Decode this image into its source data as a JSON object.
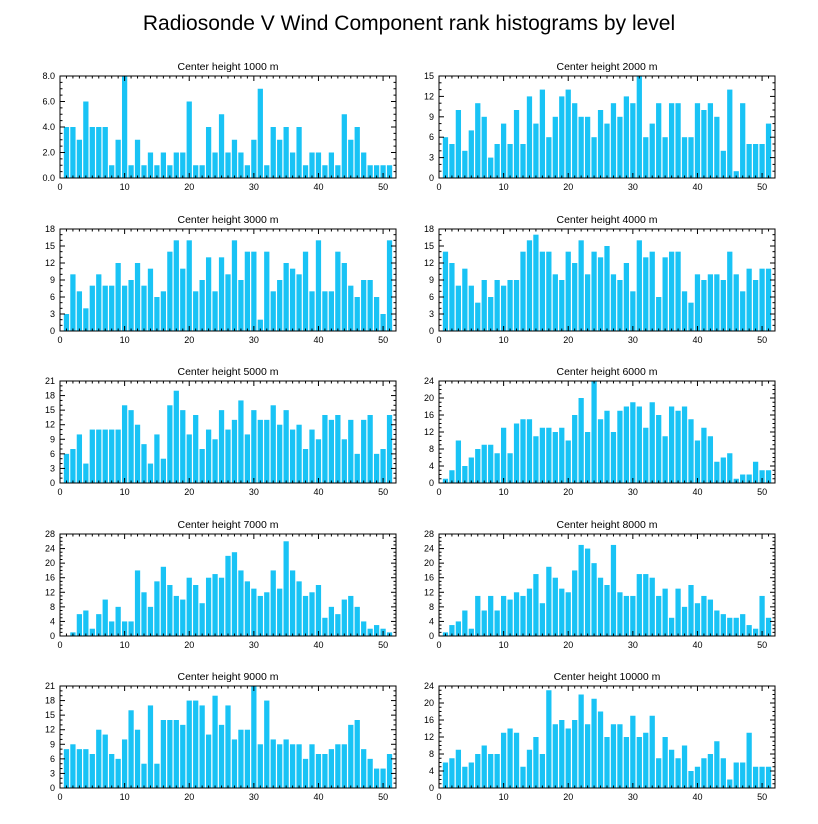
{
  "figure_title": "Radiosonde V Wind Component rank histograms by level",
  "colors": {
    "bar": "#19c3f5",
    "frame": "#000000",
    "background": "#ffffff"
  },
  "chart_data": [
    {
      "type": "bar",
      "title": "Center height 1000 m",
      "xlim": [
        0,
        52
      ],
      "ylim": [
        0,
        8
      ],
      "xticks": [
        0,
        10,
        20,
        30,
        40,
        50
      ],
      "xtick_labels": [
        "0",
        "10",
        "20",
        "30",
        "40",
        "50"
      ],
      "yticks": [
        0,
        2,
        4,
        6,
        8
      ],
      "ytick_labels": [
        "0.0",
        "2.0",
        "4.0",
        "6.0",
        "8.0"
      ],
      "x": [
        1,
        2,
        3,
        4,
        5,
        6,
        7,
        8,
        9,
        10,
        11,
        12,
        13,
        14,
        15,
        16,
        17,
        18,
        19,
        20,
        21,
        22,
        23,
        24,
        25,
        26,
        27,
        28,
        29,
        30,
        31,
        32,
        33,
        34,
        35,
        36,
        37,
        38,
        39,
        40,
        41,
        42,
        43,
        44,
        45,
        46,
        47,
        48,
        49,
        50,
        51
      ],
      "values": [
        4,
        4,
        3,
        6,
        4,
        4,
        4,
        1,
        3,
        8,
        1,
        3,
        1,
        2,
        1,
        2,
        1,
        2,
        2,
        6,
        1,
        1,
        4,
        2,
        5,
        2,
        3,
        2,
        1,
        3,
        7,
        1,
        4,
        3,
        4,
        2,
        4,
        1,
        2,
        2,
        1,
        2,
        1,
        5,
        3,
        4,
        2,
        1,
        1,
        1,
        1
      ]
    },
    {
      "type": "bar",
      "title": "Center height 2000 m",
      "xlim": [
        0,
        52
      ],
      "ylim": [
        0,
        15
      ],
      "xticks": [
        0,
        10,
        20,
        30,
        40,
        50
      ],
      "xtick_labels": [
        "0",
        "10",
        "20",
        "30",
        "40",
        "50"
      ],
      "yticks": [
        0,
        3,
        6,
        9,
        12,
        15
      ],
      "ytick_labels": [
        "0",
        "3",
        "6",
        "9",
        "12",
        "15"
      ],
      "x": [
        1,
        2,
        3,
        4,
        5,
        6,
        7,
        8,
        9,
        10,
        11,
        12,
        13,
        14,
        15,
        16,
        17,
        18,
        19,
        20,
        21,
        22,
        23,
        24,
        25,
        26,
        27,
        28,
        29,
        30,
        31,
        32,
        33,
        34,
        35,
        36,
        37,
        38,
        39,
        40,
        41,
        42,
        43,
        44,
        45,
        46,
        47,
        48,
        49,
        50,
        51
      ],
      "values": [
        6,
        5,
        10,
        4,
        7,
        11,
        9,
        3,
        5,
        8,
        5,
        10,
        5,
        12,
        8,
        13,
        6,
        9,
        12,
        13,
        11,
        9,
        9,
        6,
        10,
        8,
        11,
        9,
        12,
        11,
        15,
        6,
        8,
        11,
        6,
        11,
        11,
        6,
        6,
        11,
        10,
        11,
        9,
        4,
        13,
        1,
        11,
        5,
        5,
        5,
        8
      ]
    },
    {
      "type": "bar",
      "title": "Center height 3000 m",
      "xlim": [
        0,
        52
      ],
      "ylim": [
        0,
        18
      ],
      "xticks": [
        0,
        10,
        20,
        30,
        40,
        50
      ],
      "xtick_labels": [
        "0",
        "10",
        "20",
        "30",
        "40",
        "50"
      ],
      "yticks": [
        0,
        3,
        6,
        9,
        12,
        15,
        18
      ],
      "ytick_labels": [
        "0",
        "3",
        "6",
        "9",
        "12",
        "15",
        "18"
      ],
      "x": [
        1,
        2,
        3,
        4,
        5,
        6,
        7,
        8,
        9,
        10,
        11,
        12,
        13,
        14,
        15,
        16,
        17,
        18,
        19,
        20,
        21,
        22,
        23,
        24,
        25,
        26,
        27,
        28,
        29,
        30,
        31,
        32,
        33,
        34,
        35,
        36,
        37,
        38,
        39,
        40,
        41,
        42,
        43,
        44,
        45,
        46,
        47,
        48,
        49,
        50,
        51
      ],
      "values": [
        3,
        10,
        7,
        4,
        8,
        10,
        8,
        8,
        12,
        8,
        9,
        12,
        8,
        11,
        6,
        7,
        14,
        16,
        11,
        16,
        7,
        9,
        13,
        7,
        13,
        10,
        16,
        9,
        14,
        14,
        2,
        14,
        7,
        9,
        12,
        11,
        10,
        14,
        7,
        16,
        7,
        7,
        14,
        12,
        8,
        6,
        9,
        9,
        6,
        3,
        16
      ]
    },
    {
      "type": "bar",
      "title": "Center height 4000 m",
      "xlim": [
        0,
        52
      ],
      "ylim": [
        0,
        18
      ],
      "xticks": [
        0,
        10,
        20,
        30,
        40,
        50
      ],
      "xtick_labels": [
        "0",
        "10",
        "20",
        "30",
        "40",
        "50"
      ],
      "yticks": [
        0,
        3,
        6,
        9,
        12,
        15,
        18
      ],
      "ytick_labels": [
        "0",
        "3",
        "6",
        "9",
        "12",
        "15",
        "18"
      ],
      "x": [
        1,
        2,
        3,
        4,
        5,
        6,
        7,
        8,
        9,
        10,
        11,
        12,
        13,
        14,
        15,
        16,
        17,
        18,
        19,
        20,
        21,
        22,
        23,
        24,
        25,
        26,
        27,
        28,
        29,
        30,
        31,
        32,
        33,
        34,
        35,
        36,
        37,
        38,
        39,
        40,
        41,
        42,
        43,
        44,
        45,
        46,
        47,
        48,
        49,
        50,
        51
      ],
      "values": [
        14,
        12,
        8,
        11,
        8,
        5,
        9,
        6,
        9,
        8,
        9,
        9,
        14,
        16,
        17,
        14,
        14,
        10,
        9,
        14,
        12,
        16,
        10,
        14,
        13,
        15,
        10,
        9,
        12,
        7,
        16,
        13,
        14,
        6,
        13,
        14,
        14,
        7,
        5,
        10,
        9,
        10,
        10,
        9,
        14,
        10,
        7,
        11,
        9,
        11,
        11
      ]
    },
    {
      "type": "bar",
      "title": "Center height 5000 m",
      "xlim": [
        0,
        52
      ],
      "ylim": [
        0,
        21
      ],
      "xticks": [
        0,
        10,
        20,
        30,
        40,
        50
      ],
      "xtick_labels": [
        "0",
        "10",
        "20",
        "30",
        "40",
        "50"
      ],
      "yticks": [
        0,
        3,
        6,
        9,
        12,
        15,
        18,
        21
      ],
      "ytick_labels": [
        "0",
        "3",
        "6",
        "9",
        "12",
        "15",
        "18",
        "21"
      ],
      "x": [
        1,
        2,
        3,
        4,
        5,
        6,
        7,
        8,
        9,
        10,
        11,
        12,
        13,
        14,
        15,
        16,
        17,
        18,
        19,
        20,
        21,
        22,
        23,
        24,
        25,
        26,
        27,
        28,
        29,
        30,
        31,
        32,
        33,
        34,
        35,
        36,
        37,
        38,
        39,
        40,
        41,
        42,
        43,
        44,
        45,
        46,
        47,
        48,
        49,
        50,
        51
      ],
      "values": [
        6,
        7,
        10,
        4,
        11,
        11,
        11,
        11,
        11,
        16,
        15,
        12,
        8,
        4,
        10,
        5,
        16,
        19,
        15,
        10,
        14,
        7,
        11,
        9,
        15,
        11,
        13,
        17,
        10,
        15,
        13,
        13,
        16,
        12,
        15,
        11,
        12,
        7,
        11,
        9,
        14,
        13,
        14,
        9,
        13,
        6,
        13,
        14,
        6,
        7,
        14
      ]
    },
    {
      "type": "bar",
      "title": "Center height 6000 m",
      "xlim": [
        0,
        52
      ],
      "ylim": [
        0,
        24
      ],
      "xticks": [
        0,
        10,
        20,
        30,
        40,
        50
      ],
      "xtick_labels": [
        "0",
        "10",
        "20",
        "30",
        "40",
        "50"
      ],
      "yticks": [
        0,
        4,
        8,
        12,
        16,
        20,
        24
      ],
      "ytick_labels": [
        "0",
        "4",
        "8",
        "12",
        "16",
        "20",
        "24"
      ],
      "x": [
        1,
        2,
        3,
        4,
        5,
        6,
        7,
        8,
        9,
        10,
        11,
        12,
        13,
        14,
        15,
        16,
        17,
        18,
        19,
        20,
        21,
        22,
        23,
        24,
        25,
        26,
        27,
        28,
        29,
        30,
        31,
        32,
        33,
        34,
        35,
        36,
        37,
        38,
        39,
        40,
        41,
        42,
        43,
        44,
        45,
        46,
        47,
        48,
        49,
        50,
        51
      ],
      "values": [
        1,
        3,
        10,
        4,
        6,
        8,
        9,
        9,
        7,
        13,
        7,
        14,
        15,
        15,
        11,
        13,
        13,
        12,
        13,
        10,
        16,
        20,
        12,
        24,
        15,
        17,
        12,
        17,
        18,
        19,
        18,
        13,
        19,
        16,
        11,
        18,
        17,
        18,
        15,
        10,
        13,
        11,
        5,
        6,
        7,
        1,
        2,
        2,
        5,
        3,
        3
      ]
    },
    {
      "type": "bar",
      "title": "Center height 7000 m",
      "xlim": [
        0,
        52
      ],
      "ylim": [
        0,
        28
      ],
      "xticks": [
        0,
        10,
        20,
        30,
        40,
        50
      ],
      "xtick_labels": [
        "0",
        "10",
        "20",
        "30",
        "40",
        "50"
      ],
      "yticks": [
        0,
        4,
        8,
        12,
        16,
        20,
        24,
        28
      ],
      "ytick_labels": [
        "0",
        "4",
        "8",
        "12",
        "16",
        "20",
        "24",
        "28"
      ],
      "x": [
        1,
        2,
        3,
        4,
        5,
        6,
        7,
        8,
        9,
        10,
        11,
        12,
        13,
        14,
        15,
        16,
        17,
        18,
        19,
        20,
        21,
        22,
        23,
        24,
        25,
        26,
        27,
        28,
        29,
        30,
        31,
        32,
        33,
        34,
        35,
        36,
        37,
        38,
        39,
        40,
        41,
        42,
        43,
        44,
        45,
        46,
        47,
        48,
        49,
        50,
        51
      ],
      "values": [
        0,
        1,
        6,
        7,
        2,
        6,
        10,
        4,
        8,
        4,
        4,
        18,
        12,
        8,
        15,
        19,
        14,
        11,
        10,
        16,
        14,
        9,
        16,
        17,
        16,
        22,
        23,
        18,
        15,
        13,
        11,
        12,
        18,
        13,
        26,
        18,
        15,
        11,
        12,
        14,
        5,
        8,
        6,
        10,
        11,
        8,
        4,
        2,
        3,
        2,
        1
      ]
    },
    {
      "type": "bar",
      "title": "Center height 8000 m",
      "xlim": [
        0,
        52
      ],
      "ylim": [
        0,
        28
      ],
      "xticks": [
        0,
        10,
        20,
        30,
        40,
        50
      ],
      "xtick_labels": [
        "0",
        "10",
        "20",
        "30",
        "40",
        "50"
      ],
      "yticks": [
        0,
        4,
        8,
        12,
        16,
        20,
        24,
        28
      ],
      "ytick_labels": [
        "0",
        "4",
        "8",
        "12",
        "16",
        "20",
        "24",
        "28"
      ],
      "x": [
        1,
        2,
        3,
        4,
        5,
        6,
        7,
        8,
        9,
        10,
        11,
        12,
        13,
        14,
        15,
        16,
        17,
        18,
        19,
        20,
        21,
        22,
        23,
        24,
        25,
        26,
        27,
        28,
        29,
        30,
        31,
        32,
        33,
        34,
        35,
        36,
        37,
        38,
        39,
        40,
        41,
        42,
        43,
        44,
        45,
        46,
        47,
        48,
        49,
        50,
        51
      ],
      "values": [
        1,
        3,
        4,
        7,
        2,
        11,
        7,
        11,
        7,
        11,
        10,
        12,
        11,
        13,
        17,
        9,
        19,
        16,
        13,
        12,
        18,
        25,
        24,
        20,
        16,
        14,
        25,
        12,
        11,
        11,
        17,
        17,
        16,
        11,
        13,
        5,
        13,
        8,
        14,
        9,
        11,
        10,
        7,
        6,
        5,
        5,
        6,
        3,
        2,
        11,
        5
      ]
    },
    {
      "type": "bar",
      "title": "Center height 9000 m",
      "xlim": [
        0,
        52
      ],
      "ylim": [
        0,
        21
      ],
      "xticks": [
        0,
        10,
        20,
        30,
        40,
        50
      ],
      "xtick_labels": [
        "0",
        "10",
        "20",
        "30",
        "40",
        "50"
      ],
      "yticks": [
        0,
        3,
        6,
        9,
        12,
        15,
        18,
        21
      ],
      "ytick_labels": [
        "0",
        "3",
        "6",
        "9",
        "12",
        "15",
        "18",
        "21"
      ],
      "x": [
        1,
        2,
        3,
        4,
        5,
        6,
        7,
        8,
        9,
        10,
        11,
        12,
        13,
        14,
        15,
        16,
        17,
        18,
        19,
        20,
        21,
        22,
        23,
        24,
        25,
        26,
        27,
        28,
        29,
        30,
        31,
        32,
        33,
        34,
        35,
        36,
        37,
        38,
        39,
        40,
        41,
        42,
        43,
        44,
        45,
        46,
        47,
        48,
        49,
        50,
        51
      ],
      "values": [
        8,
        9,
        8,
        8,
        7,
        12,
        11,
        7,
        6,
        10,
        16,
        12,
        5,
        17,
        5,
        14,
        14,
        14,
        13,
        18,
        18,
        17,
        11,
        19,
        13,
        17,
        10,
        12,
        12,
        21,
        9,
        18,
        10,
        9,
        10,
        9,
        9,
        6,
        9,
        7,
        7,
        8,
        9,
        9,
        13,
        14,
        8,
        6,
        4,
        4,
        7
      ]
    },
    {
      "type": "bar",
      "title": "Center height 10000 m",
      "xlim": [
        0,
        52
      ],
      "ylim": [
        0,
        24
      ],
      "xticks": [
        0,
        10,
        20,
        30,
        40,
        50
      ],
      "xtick_labels": [
        "0",
        "10",
        "20",
        "30",
        "40",
        "50"
      ],
      "yticks": [
        0,
        4,
        8,
        12,
        16,
        20,
        24
      ],
      "ytick_labels": [
        "0",
        "4",
        "8",
        "12",
        "16",
        "20",
        "24"
      ],
      "x": [
        1,
        2,
        3,
        4,
        5,
        6,
        7,
        8,
        9,
        10,
        11,
        12,
        13,
        14,
        15,
        16,
        17,
        18,
        19,
        20,
        21,
        22,
        23,
        24,
        25,
        26,
        27,
        28,
        29,
        30,
        31,
        32,
        33,
        34,
        35,
        36,
        37,
        38,
        39,
        40,
        41,
        42,
        43,
        44,
        45,
        46,
        47,
        48,
        49,
        50,
        51
      ],
      "values": [
        6,
        7,
        9,
        5,
        6,
        8,
        10,
        8,
        8,
        13,
        14,
        13,
        5,
        9,
        12,
        8,
        23,
        15,
        16,
        14,
        16,
        22,
        15,
        21,
        18,
        12,
        15,
        15,
        12,
        17,
        12,
        13,
        17,
        7,
        12,
        9,
        7,
        10,
        4,
        5,
        7,
        8,
        11,
        7,
        2,
        6,
        6,
        13,
        5,
        5,
        5
      ]
    }
  ]
}
